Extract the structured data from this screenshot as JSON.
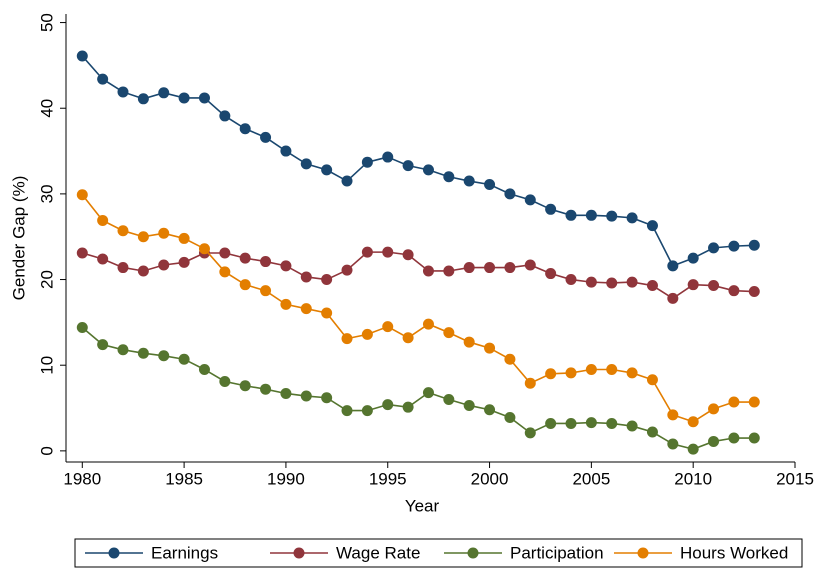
{
  "chart_data": {
    "type": "line",
    "x_label": "Year",
    "y_label": "Gender Gap (%)",
    "x": [
      1980,
      1981,
      1982,
      1983,
      1984,
      1985,
      1986,
      1987,
      1988,
      1989,
      1990,
      1991,
      1992,
      1993,
      1994,
      1995,
      1996,
      1997,
      1998,
      1999,
      2000,
      2001,
      2002,
      2003,
      2004,
      2005,
      2006,
      2007,
      2008,
      2009,
      2010,
      2011,
      2012,
      2013
    ],
    "series": [
      {
        "name": "Earnings",
        "color": "#1a476f",
        "values": [
          46.1,
          43.4,
          41.9,
          41.1,
          41.8,
          41.2,
          41.2,
          39.1,
          37.6,
          36.6,
          35.0,
          33.5,
          32.8,
          31.5,
          33.7,
          34.3,
          33.3,
          32.8,
          32.0,
          31.5,
          31.1,
          30.0,
          29.3,
          28.2,
          27.5,
          27.5,
          27.4,
          27.2,
          26.3,
          21.6,
          22.5,
          23.7,
          23.9,
          24.0
        ]
      },
      {
        "name": "Wage Rate",
        "color": "#90353b",
        "values": [
          23.1,
          22.4,
          21.4,
          21.0,
          21.7,
          22.0,
          23.1,
          23.1,
          22.5,
          22.1,
          21.6,
          20.3,
          20.0,
          21.1,
          23.2,
          23.2,
          22.9,
          21.0,
          21.0,
          21.4,
          21.4,
          21.4,
          21.7,
          20.7,
          20.0,
          19.7,
          19.6,
          19.7,
          19.3,
          17.8,
          19.4,
          19.3,
          18.7,
          18.6
        ]
      },
      {
        "name": "Participation",
        "color": "#55752f",
        "values": [
          14.4,
          12.4,
          11.8,
          11.4,
          11.1,
          10.7,
          9.5,
          8.1,
          7.6,
          7.2,
          6.7,
          6.4,
          6.2,
          4.7,
          4.7,
          5.4,
          5.1,
          6.8,
          6.0,
          5.3,
          4.8,
          3.9,
          2.1,
          3.2,
          3.2,
          3.3,
          3.2,
          2.9,
          2.2,
          0.8,
          0.2,
          1.1,
          1.5,
          1.5
        ]
      },
      {
        "name": "Hours Worked",
        "color": "#e37e00",
        "values": [
          29.9,
          26.9,
          25.7,
          25.0,
          25.4,
          24.8,
          23.6,
          20.9,
          19.4,
          18.7,
          17.1,
          16.6,
          16.1,
          13.1,
          13.6,
          14.5,
          13.2,
          14.8,
          13.8,
          12.7,
          12.0,
          10.7,
          7.9,
          9.0,
          9.1,
          9.5,
          9.5,
          9.1,
          8.3,
          4.2,
          3.4,
          4.9,
          5.7,
          5.7
        ]
      }
    ],
    "xlim": [
      1979.2,
      2015
    ],
    "xticks": [
      1980,
      1985,
      1990,
      1995,
      2000,
      2005,
      2010,
      2015
    ],
    "ylim": [
      -1.3,
      51
    ],
    "yticks": [
      0,
      10,
      20,
      30,
      40,
      50
    ],
    "grid": false,
    "legend": "bottom"
  }
}
